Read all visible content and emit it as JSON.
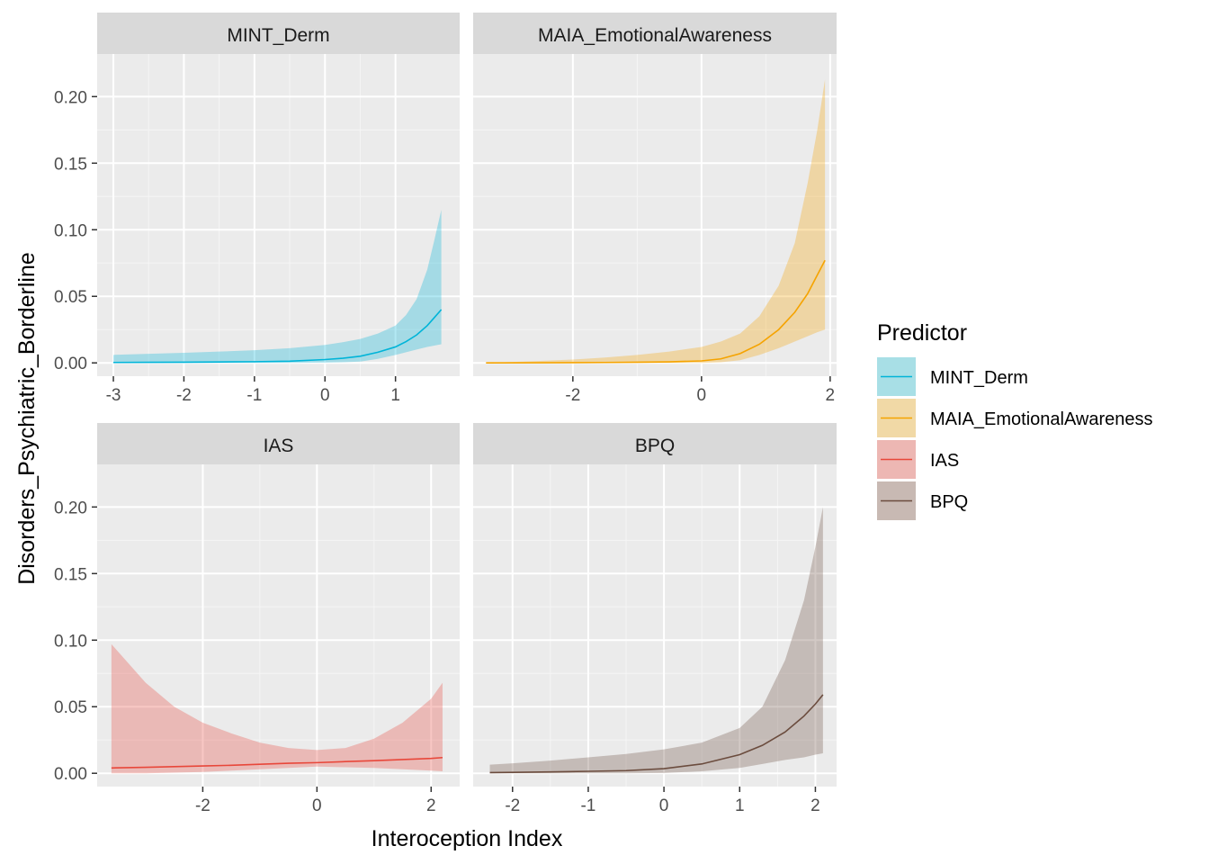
{
  "chart_data": {
    "type": "line",
    "xlabel": "Interoception Index",
    "ylabel": "Disorders_Psychiatric_Borderline",
    "y_range": [
      -0.01,
      0.232
    ],
    "y_ticks": [
      0.0,
      0.05,
      0.1,
      0.15,
      0.2
    ],
    "y_tick_labels": [
      "0.00",
      "0.05",
      "0.10",
      "0.15",
      "0.20"
    ],
    "grid": true,
    "legend": {
      "title": "Predictor",
      "position": "right",
      "items": [
        {
          "label": "MINT_Derm",
          "color": "#00B4D8",
          "fill": "#A8DFE6"
        },
        {
          "label": "MAIA_EmotionalAwareness",
          "color": "#F5A300",
          "fill": "#F1D9A6"
        },
        {
          "label": "IAS",
          "color": "#E8473A",
          "fill": "#EDB7B3"
        },
        {
          "label": "BPQ",
          "color": "#6B4C3E",
          "fill": "#C8B9B3"
        }
      ]
    },
    "panels": [
      {
        "title": "MINT_Derm",
        "series": "MINT_Derm",
        "x_range": [
          -3.23,
          1.91
        ],
        "x_ticks": [
          -3,
          -2,
          -1,
          0,
          1
        ],
        "x_tick_labels": [
          "-3",
          "-2",
          "-1",
          "0",
          "1"
        ],
        "x": [
          -3.0,
          -2.5,
          -2.0,
          -1.5,
          -1.0,
          -0.5,
          0.0,
          0.25,
          0.5,
          0.75,
          1.0,
          1.15,
          1.3,
          1.45,
          1.55,
          1.65
        ],
        "y": [
          0.0003,
          0.0004,
          0.0005,
          0.0007,
          0.0009,
          0.0013,
          0.0025,
          0.0035,
          0.005,
          0.008,
          0.012,
          0.016,
          0.021,
          0.028,
          0.034,
          0.04
        ],
        "lower": [
          0.0,
          0.0,
          0.0,
          0.0,
          0.0,
          0.0,
          0.0002,
          0.0005,
          0.001,
          0.003,
          0.006,
          0.008,
          0.01,
          0.012,
          0.013,
          0.014
        ],
        "upper": [
          0.006,
          0.0068,
          0.0076,
          0.0085,
          0.0095,
          0.011,
          0.0135,
          0.0155,
          0.018,
          0.022,
          0.028,
          0.036,
          0.048,
          0.07,
          0.092,
          0.115
        ]
      },
      {
        "title": "MAIA_EmotionalAwareness",
        "series": "MAIA_EmotionalAwareness",
        "x_range": [
          -3.55,
          2.1
        ],
        "x_ticks": [
          -2,
          0,
          2
        ],
        "x_tick_labels": [
          "-2",
          "0",
          "2"
        ],
        "x": [
          -3.35,
          -2.5,
          -2.0,
          -1.5,
          -1.0,
          -0.5,
          0.0,
          0.3,
          0.6,
          0.9,
          1.2,
          1.45,
          1.65,
          1.8,
          1.92
        ],
        "y": [
          0.0,
          0.0001,
          0.0002,
          0.0003,
          0.0005,
          0.0008,
          0.0015,
          0.003,
          0.007,
          0.014,
          0.025,
          0.038,
          0.052,
          0.066,
          0.077
        ],
        "lower": [
          0.0,
          0.0,
          0.0,
          0.0,
          0.0,
          0.0,
          0.0,
          0.0005,
          0.002,
          0.006,
          0.011,
          0.016,
          0.02,
          0.023,
          0.025
        ],
        "upper": [
          0.0,
          0.0015,
          0.0025,
          0.004,
          0.006,
          0.0085,
          0.012,
          0.016,
          0.022,
          0.035,
          0.058,
          0.09,
          0.135,
          0.175,
          0.213
        ]
      },
      {
        "title": "IAS",
        "series": "IAS",
        "x_range": [
          -3.85,
          2.5
        ],
        "x_ticks": [
          -2,
          0,
          2
        ],
        "x_tick_labels": [
          "-2",
          "0",
          "2"
        ],
        "x": [
          -3.6,
          -3.0,
          -2.5,
          -2.0,
          -1.5,
          -1.0,
          -0.5,
          0.0,
          0.5,
          1.0,
          1.5,
          2.0,
          2.2
        ],
        "y": [
          0.004,
          0.0045,
          0.005,
          0.0055,
          0.006,
          0.0068,
          0.0075,
          0.008,
          0.0088,
          0.0095,
          0.0103,
          0.0112,
          0.0118
        ],
        "lower": [
          0.0,
          0.0,
          0.0005,
          0.001,
          0.002,
          0.003,
          0.004,
          0.005,
          0.0045,
          0.004,
          0.003,
          0.002,
          0.0015
        ],
        "upper": [
          0.097,
          0.068,
          0.05,
          0.038,
          0.03,
          0.023,
          0.019,
          0.0175,
          0.019,
          0.026,
          0.038,
          0.056,
          0.068
        ]
      },
      {
        "title": "BPQ",
        "series": "BPQ",
        "x_range": [
          -2.52,
          2.28
        ],
        "x_ticks": [
          -2,
          -1,
          0,
          1,
          2
        ],
        "x_tick_labels": [
          "-2",
          "-1",
          "0",
          "1",
          "2"
        ],
        "x": [
          -2.3,
          -2.0,
          -1.5,
          -1.0,
          -0.5,
          0.0,
          0.5,
          1.0,
          1.3,
          1.6,
          1.85,
          2.0,
          2.1
        ],
        "y": [
          0.0005,
          0.0007,
          0.001,
          0.0015,
          0.002,
          0.0035,
          0.007,
          0.014,
          0.021,
          0.031,
          0.043,
          0.052,
          0.059
        ],
        "lower": [
          0.0,
          0.0,
          0.0,
          0.0,
          0.0,
          0.0002,
          0.0015,
          0.004,
          0.007,
          0.01,
          0.012,
          0.014,
          0.015
        ],
        "upper": [
          0.0065,
          0.0075,
          0.0095,
          0.012,
          0.0145,
          0.018,
          0.023,
          0.034,
          0.05,
          0.085,
          0.13,
          0.17,
          0.2
        ]
      }
    ]
  }
}
